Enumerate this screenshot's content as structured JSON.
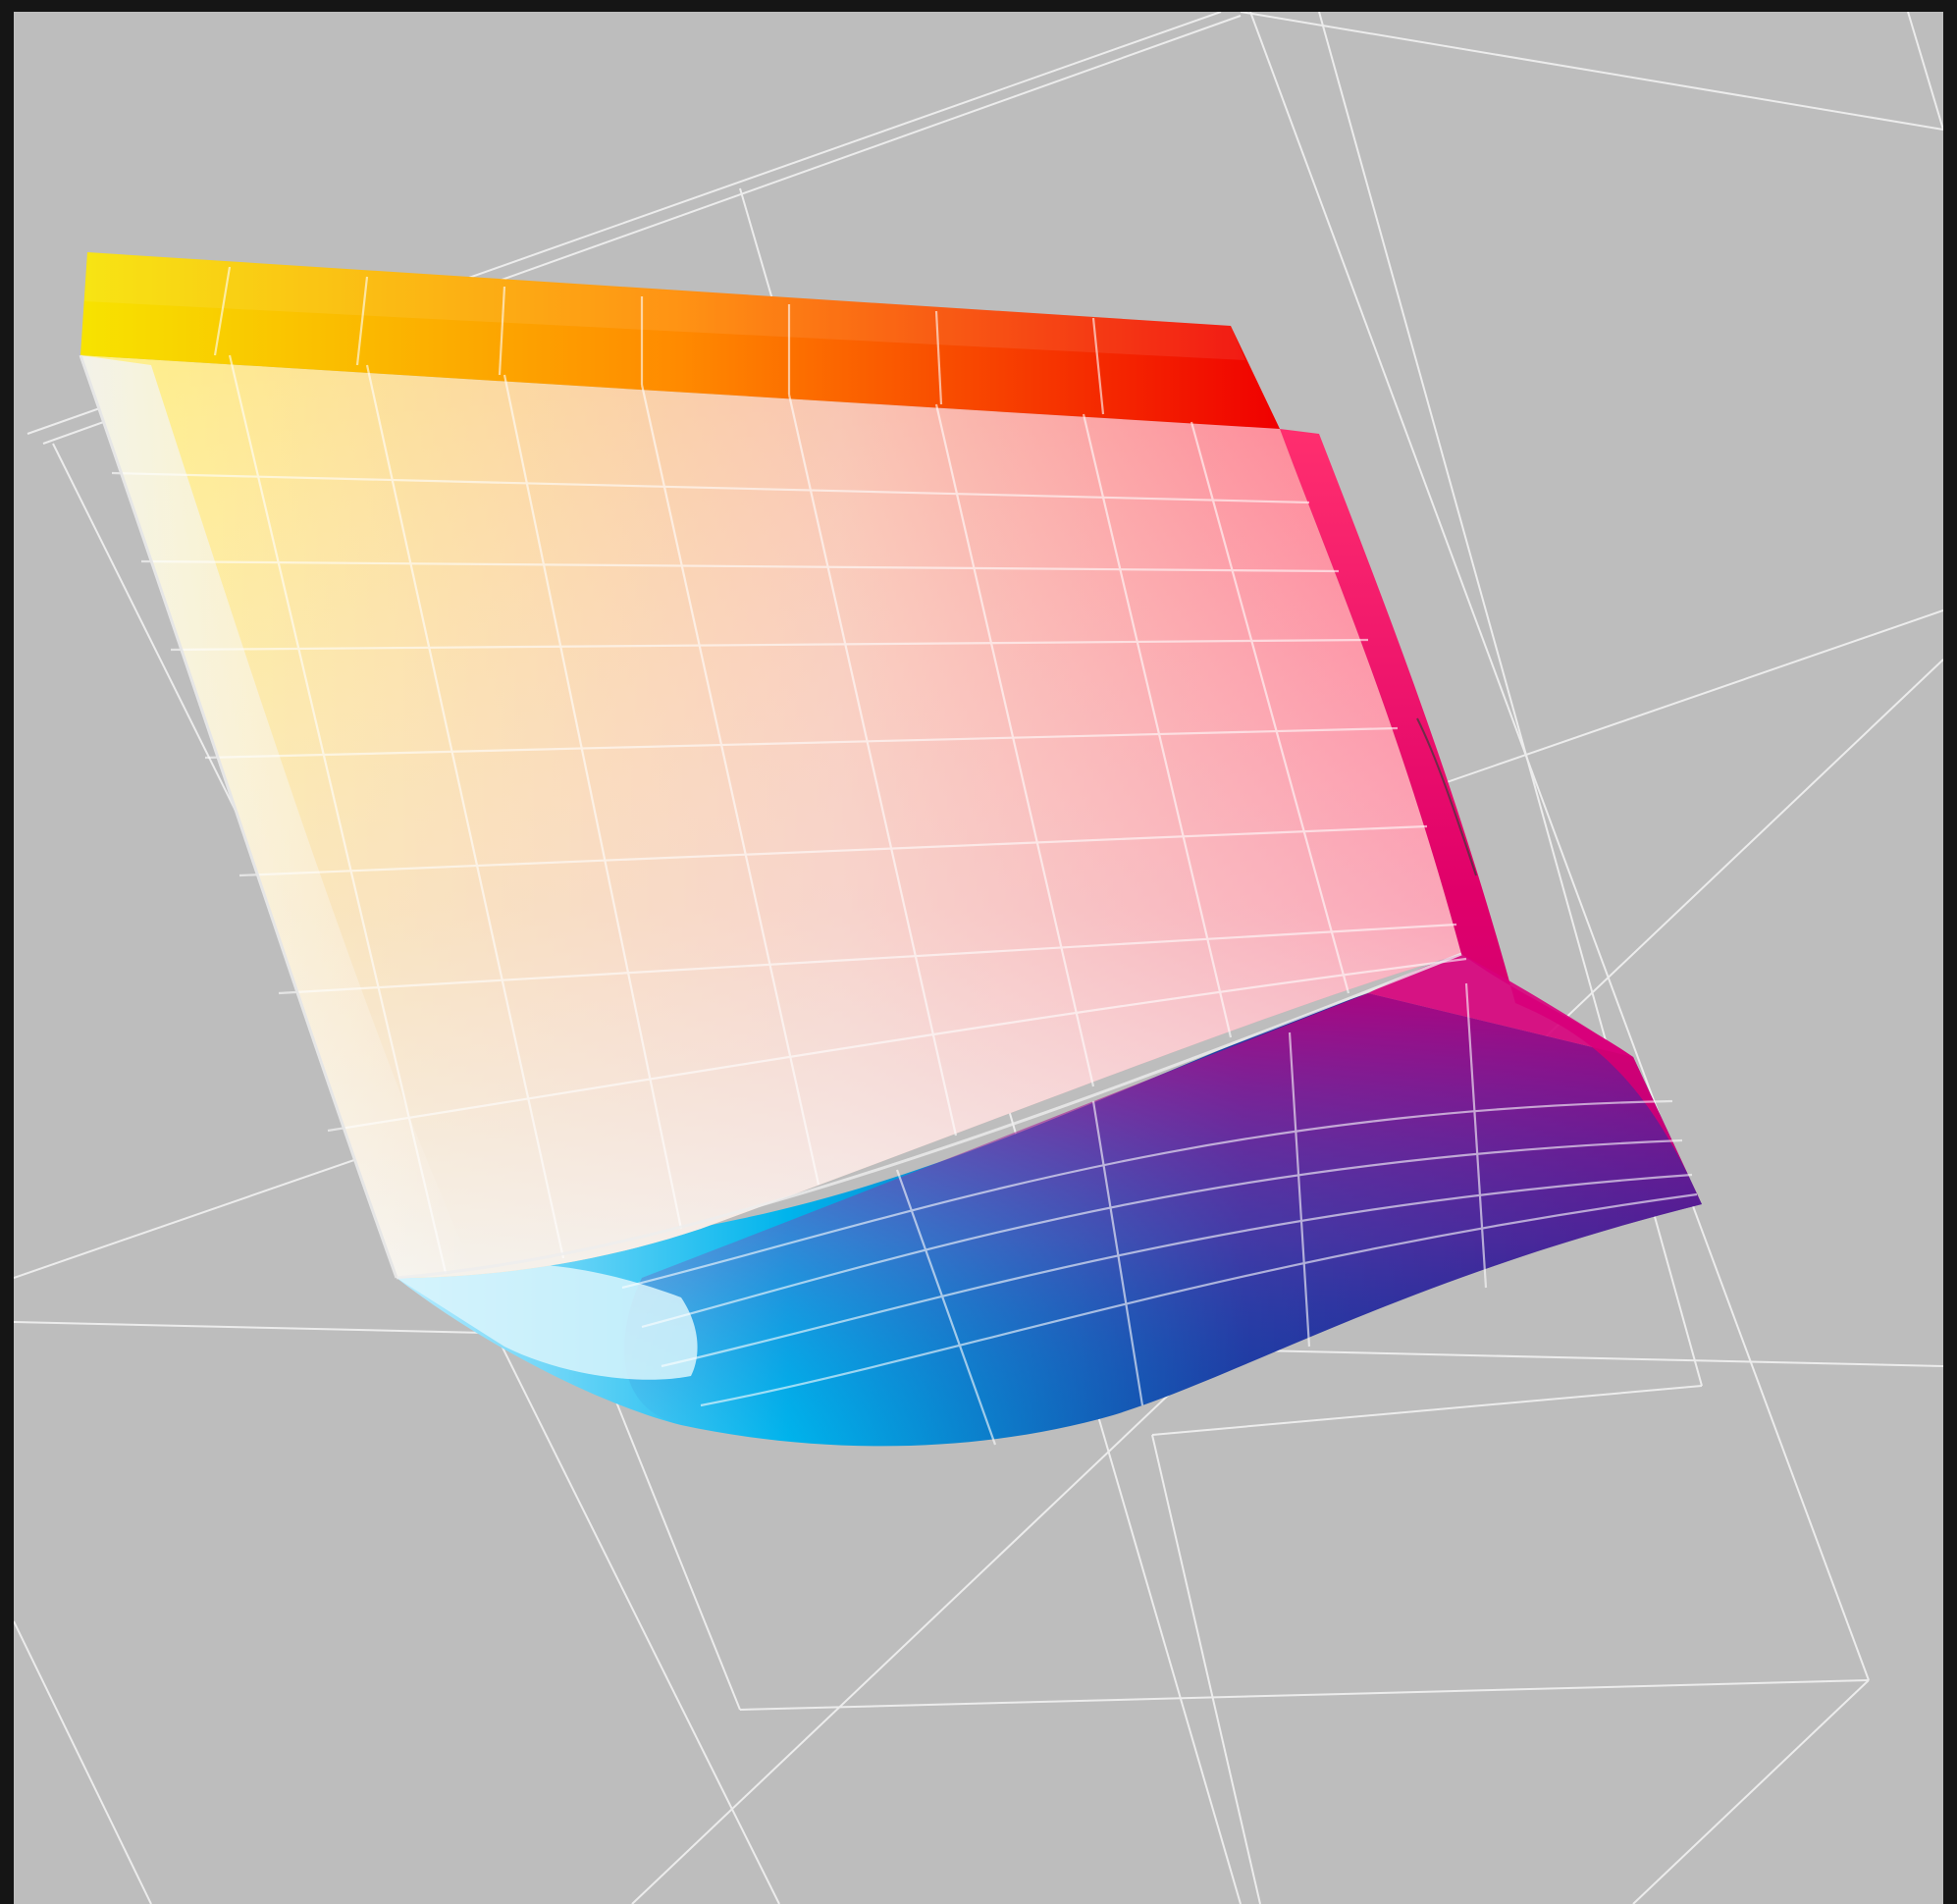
{
  "viewer": {
    "background_color": "#151515",
    "viewport_color": "#bdbdbd",
    "grid_color": "#f2f2f2"
  },
  "gamut": {
    "colors": {
      "yellow": "#f7e300",
      "red": "#f00000",
      "magenta": "#c0007e",
      "blue_violet": "#2b0d84",
      "cyan": "#00b4ec",
      "white": "#f7f7f4"
    }
  }
}
